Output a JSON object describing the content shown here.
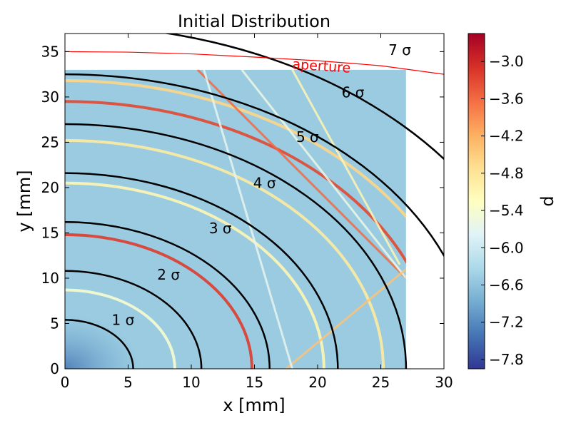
{
  "chart_data": {
    "type": "heatmap",
    "title": "Initial Distribution",
    "xlabel": "x [mm]",
    "ylabel": "y [mm]",
    "xlim": [
      0,
      30
    ],
    "ylim": [
      0,
      37
    ],
    "map_extent": {
      "x": [
        0,
        27
      ],
      "y": [
        0,
        33
      ]
    },
    "x_ticks": [
      0,
      5,
      10,
      15,
      20,
      25,
      30
    ],
    "y_ticks": [
      0,
      5,
      10,
      15,
      20,
      25,
      30,
      35
    ],
    "colorbar": {
      "label": "d",
      "min": -7.95,
      "max": -2.55,
      "ticks": [
        -3.0,
        -3.6,
        -4.2,
        -4.8,
        -5.4,
        -6.0,
        -6.6,
        -7.2,
        -7.8
      ],
      "tick_labels": [
        "−3.0",
        "−3.6",
        "−4.2",
        "−4.8",
        "−5.4",
        "−6.0",
        "−6.6",
        "−7.2",
        "−7.8"
      ],
      "colormap": "RdYlBu_r"
    },
    "background_value": -6.5,
    "sigma_contours": [
      {
        "label": "1 σ",
        "radius": 5.4,
        "label_at": [
          4.6,
          5.4
        ]
      },
      {
        "label": "2 σ",
        "radius": 10.8,
        "label_at": [
          8.2,
          10.4
        ]
      },
      {
        "label": "3 σ",
        "radius": 16.2,
        "label_at": [
          12.3,
          15.5
        ]
      },
      {
        "label": "4 σ",
        "radius": 21.6,
        "label_at": [
          15.8,
          20.5
        ]
      },
      {
        "label": "5 σ",
        "radius": 27.0,
        "label_at": [
          19.2,
          25.6
        ]
      },
      {
        "label": "6 σ",
        "radius": 32.5,
        "label_at": [
          22.8,
          30.5
        ]
      },
      {
        "label": "7 σ",
        "radius": 37.9,
        "label_at": [
          26.5,
          35.2
        ]
      }
    ],
    "aperture": {
      "label": "aperture",
      "color": "#ff0000",
      "points": [
        [
          0,
          35.0
        ],
        [
          5,
          34.95
        ],
        [
          10,
          34.75
        ],
        [
          15,
          34.4
        ],
        [
          20,
          34.0
        ],
        [
          25,
          33.45
        ],
        [
          30,
          32.5
        ]
      ],
      "label_at": [
        18.0,
        33.6
      ]
    },
    "ring_features": [
      {
        "radius": 14.8,
        "value": -3.2
      },
      {
        "radius": 29.5,
        "value": -3.3
      },
      {
        "radius": 25.2,
        "value": -4.9
      },
      {
        "radius": 20.5,
        "value": -5.1
      },
      {
        "radius": 8.7,
        "value": -5.4
      },
      {
        "radius": 31.8,
        "value": -4.6
      }
    ],
    "diagonal_features": [
      {
        "from": [
          27,
          10
        ],
        "to": [
          10.5,
          33
        ],
        "value": -3.6
      },
      {
        "from": [
          26.5,
          11.5
        ],
        "to": [
          18,
          33
        ],
        "value": -5.1
      },
      {
        "from": [
          27,
          10
        ],
        "to": [
          14,
          33
        ],
        "value": -5.6
      },
      {
        "from": [
          17.5,
          0
        ],
        "to": [
          27,
          11
        ],
        "value": -4.4
      },
      {
        "from": [
          18,
          0
        ],
        "to": [
          11,
          33
        ],
        "value": -5.7
      }
    ],
    "line_color": "#000000"
  }
}
